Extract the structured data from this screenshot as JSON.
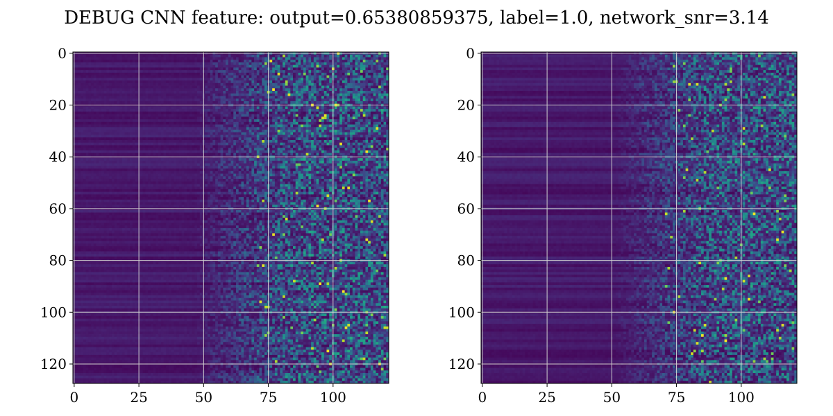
{
  "chart_data": {
    "type": "heatmap",
    "title": "DEBUG CNN feature: output=0.65380859375, label=1.0, network_snr=3.14",
    "grid": true,
    "colormap": "viridis",
    "colors": {
      "grid_line": "#d0d0d0",
      "low": "#440154",
      "high": "#fde725"
    },
    "panels": [
      {
        "name": "left",
        "shape": [
          128,
          122
        ],
        "xlim": [
          -0.5,
          121.5
        ],
        "ylim": [
          127.5,
          -0.5
        ],
        "xticks": [
          0,
          25,
          50,
          75,
          100
        ],
        "yticks": [
          0,
          20,
          40,
          60,
          80,
          100,
          120
        ],
        "xtick_labels": [
          "0",
          "25",
          "50",
          "75",
          "100"
        ],
        "ytick_labels": [
          "0",
          "20",
          "40",
          "60",
          "80",
          "100",
          "120"
        ],
        "value_profile": "low values for columns 0–45, gradually increasing noise toward columns 75–121",
        "seed": 11
      },
      {
        "name": "right",
        "shape": [
          128,
          122
        ],
        "xlim": [
          -0.5,
          121.5
        ],
        "ylim": [
          127.5,
          -0.5
        ],
        "xticks": [
          0,
          25,
          50,
          75,
          100
        ],
        "yticks": [
          0,
          20,
          40,
          60,
          80,
          100,
          120
        ],
        "xtick_labels": [
          "0",
          "25",
          "50",
          "75",
          "100"
        ],
        "ytick_labels": [
          "0",
          "20",
          "40",
          "60",
          "80",
          "100",
          "120"
        ],
        "value_profile": "low values for columns 0–50, gradually increasing noise toward columns 75–121",
        "seed": 29
      }
    ]
  }
}
